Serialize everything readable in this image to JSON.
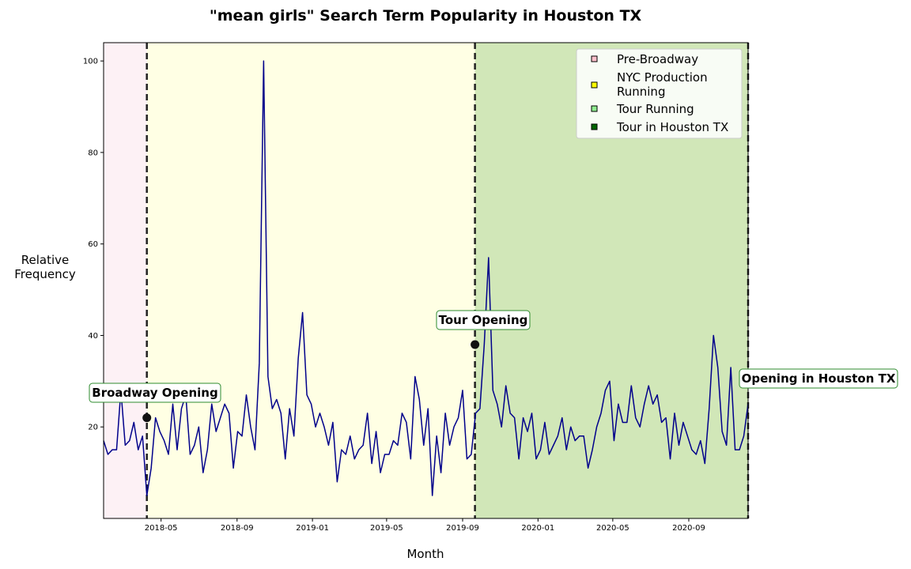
{
  "chart_data": {
    "type": "line",
    "title": "\"mean girls\" Search Term Popularity in Houston TX",
    "xlabel": "Month",
    "ylabel": "Relative\nFrequency",
    "x_start": "2018-01-28",
    "x_end": "2020-12-06",
    "x_step_days": 7,
    "ylim": [
      0,
      104
    ],
    "yticks": [
      20,
      40,
      60,
      80,
      100
    ],
    "xticks": [
      "2018-05",
      "2018-09",
      "2019-01",
      "2019-05",
      "2019-09",
      "2020-01",
      "2020-05",
      "2020-09"
    ],
    "grid": false,
    "series": [
      {
        "color": "#00008b",
        "values": [
          17,
          14,
          15,
          15,
          28,
          16,
          17,
          21,
          15,
          18,
          5,
          11,
          22,
          19,
          17,
          14,
          25,
          15,
          24,
          27,
          14,
          16,
          20,
          10,
          15,
          25,
          19,
          22,
          25,
          23,
          11,
          19,
          18,
          27,
          20,
          15,
          34,
          100,
          31,
          24,
          26,
          23,
          13,
          24,
          18,
          35,
          45,
          27,
          25,
          20,
          23,
          20,
          16,
          21,
          8,
          15,
          14,
          18,
          13,
          15,
          16,
          23,
          12,
          19,
          10,
          14,
          14,
          17,
          16,
          23,
          21,
          13,
          31,
          26,
          16,
          24,
          5,
          18,
          10,
          23,
          16,
          20,
          22,
          28,
          13,
          14,
          23,
          24,
          38,
          57,
          28,
          25,
          20,
          29,
          23,
          22,
          13,
          22,
          19,
          23,
          13,
          15,
          21,
          14,
          16,
          18,
          22,
          15,
          20,
          17,
          18,
          18,
          11,
          15,
          20,
          23,
          28,
          30,
          17,
          25,
          21,
          21,
          29,
          22,
          20,
          25,
          29,
          25,
          27,
          21,
          22,
          13,
          23,
          16,
          21,
          18,
          15,
          14,
          17,
          12,
          24,
          40,
          33,
          19,
          16,
          33,
          15,
          15,
          18,
          25
        ]
      }
    ],
    "periods": [
      {
        "name": "Pre-Broadway",
        "start": "2018-01-28",
        "end": "2018-04-08",
        "color": "#fdf1f5"
      },
      {
        "name": "NYC Production Running",
        "start": "2018-04-08",
        "end": "2019-09-21",
        "color": "#ffffe4"
      },
      {
        "name": "Tour Running",
        "start": "2019-09-21",
        "end": "2020-12-06",
        "color": "#d1e7b8"
      }
    ],
    "events": [
      {
        "label": "Broadway Opening",
        "date": "2018-04-08",
        "y": 22
      },
      {
        "label": "Tour Opening",
        "date": "2019-09-21",
        "y": 38
      },
      {
        "label": "Opening in Houston TX",
        "date": "2020-12-06",
        "y": null
      }
    ],
    "legend": {
      "placement": "top-right",
      "entries": [
        {
          "label": "Pre-Broadway",
          "color": "#ffc0cb"
        },
        {
          "label": "NYC Production\nRunning",
          "color": "#ffff00"
        },
        {
          "label": "Tour Running",
          "color": "#90ee90"
        },
        {
          "label": "Tour in Houston TX",
          "color": "#006400"
        }
      ]
    }
  }
}
